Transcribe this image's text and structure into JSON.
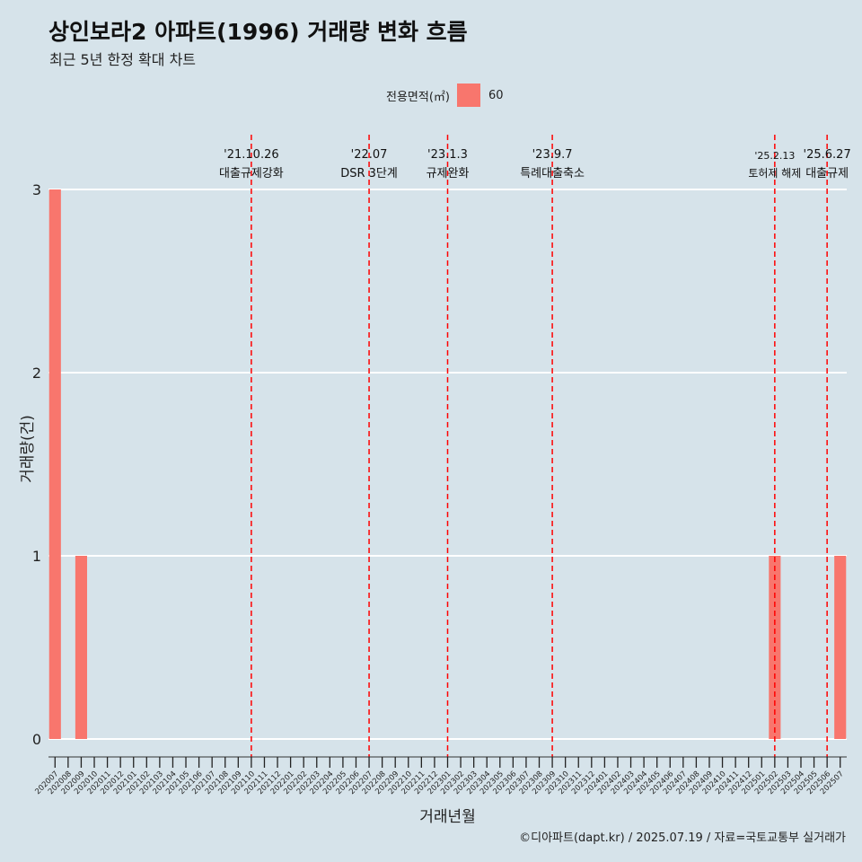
{
  "title": "상인보라2 아파트(1996) 거래량 변화 흐름",
  "subtitle": "최근 5년 한정 확대 차트",
  "legend": {
    "title": "전용면적(㎡)",
    "label": "60"
  },
  "caption": "©디아파트(dapt.kr) / 2025.07.19 / 자료=국토교통부 실거래가",
  "colors": {
    "background": "#d6e3ea",
    "bar": "#f8766d",
    "event_line": "#ff0000",
    "grid": "#ffffff"
  },
  "chart_data": {
    "type": "bar",
    "xlabel": "거래년월",
    "ylabel": "거래량(건)",
    "ylim": [
      0,
      3
    ],
    "yticks": [
      0,
      1,
      2,
      3
    ],
    "grid": true,
    "legend_position": "top",
    "categories": [
      "202007",
      "202008",
      "202009",
      "202010",
      "202011",
      "202012",
      "202101",
      "202102",
      "202103",
      "202104",
      "202105",
      "202106",
      "202107",
      "202108",
      "202109",
      "202110",
      "202111",
      "202112",
      "202201",
      "202202",
      "202203",
      "202204",
      "202205",
      "202206",
      "202207",
      "202208",
      "202209",
      "202210",
      "202211",
      "202212",
      "202301",
      "202302",
      "202303",
      "202304",
      "202305",
      "202306",
      "202307",
      "202308",
      "202309",
      "202310",
      "202311",
      "202312",
      "202401",
      "202402",
      "202403",
      "202404",
      "202405",
      "202406",
      "202407",
      "202408",
      "202409",
      "202410",
      "202411",
      "202412",
      "202501",
      "202502",
      "202503",
      "202504",
      "202505",
      "202506",
      "202507"
    ],
    "series": [
      {
        "name": "60",
        "values": [
          3,
          0,
          1,
          0,
          0,
          0,
          0,
          0,
          0,
          0,
          0,
          0,
          0,
          0,
          0,
          0,
          0,
          0,
          0,
          0,
          0,
          0,
          0,
          0,
          0,
          0,
          0,
          0,
          0,
          0,
          0,
          0,
          0,
          0,
          0,
          0,
          0,
          0,
          0,
          0,
          0,
          0,
          0,
          0,
          0,
          0,
          0,
          0,
          0,
          0,
          0,
          0,
          0,
          0,
          0,
          1,
          0,
          0,
          0,
          0,
          1
        ]
      }
    ],
    "annotations": [
      {
        "x": "202110",
        "date": "'21.10.26",
        "label": "대출규제강화"
      },
      {
        "x": "202207",
        "date": "'22.07",
        "label": "DSR 3단계"
      },
      {
        "x": "202301",
        "date": "'23.1.3",
        "label": "규제완화"
      },
      {
        "x": "202309",
        "date": "'23.9.7",
        "label": "특례대출축소"
      },
      {
        "x": "202502",
        "date": "'25.2.13",
        "label": "토허제 해제"
      },
      {
        "x": "202506",
        "date": "'25.6.27",
        "label": "대출규제"
      }
    ]
  }
}
